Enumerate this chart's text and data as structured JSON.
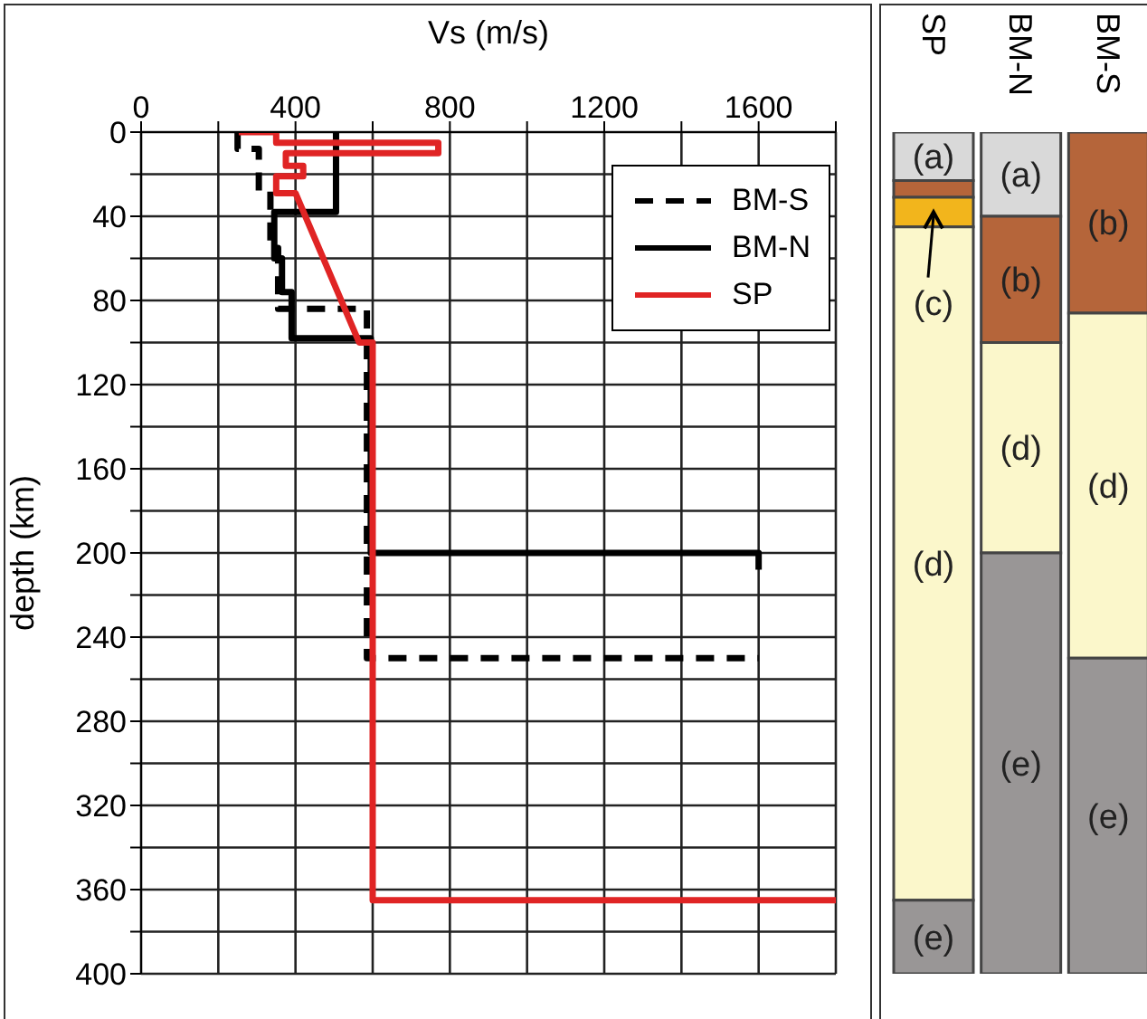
{
  "chart_data": [
    {
      "type": "line",
      "xlabel": "Vs (m/s)",
      "ylabel": "depth (km)",
      "xlim": [
        0,
        1800
      ],
      "xticks": [
        0,
        {
          "value": 200,
          "label": null
        },
        400,
        {
          "value": 600,
          "label": null
        },
        800,
        {
          "value": 1000,
          "label": null
        },
        1200,
        {
          "value": 1400,
          "label": null
        },
        1600,
        {
          "value": 1800,
          "label": null
        }
      ],
      "ylim": [
        400,
        0
      ],
      "yticks": [
        0,
        {
          "value": 20,
          "label": null
        },
        40,
        {
          "value": 60,
          "label": null
        },
        80,
        {
          "value": 100,
          "label": null
        },
        120,
        {
          "value": 140,
          "label": null
        },
        160,
        {
          "value": 180,
          "label": null
        },
        200,
        {
          "value": 220,
          "label": null
        },
        240,
        {
          "value": 260,
          "label": null
        },
        280,
        {
          "value": 300,
          "label": null
        },
        320,
        {
          "value": 340,
          "label": null
        },
        360,
        {
          "value": 380,
          "label": null
        },
        400
      ],
      "grid": true,
      "legend": "top right",
      "marker": "none",
      "series": [
        {
          "name": "BM-S",
          "color": "#000000",
          "line_style": "dashed",
          "x": [
            250,
            250,
            305,
            305,
            335,
            335,
            355,
            355,
            585,
            585,
            1600
          ],
          "values": [
            0,
            8,
            8,
            28,
            28,
            55,
            55,
            84,
            84,
            250,
            250
          ]
        },
        {
          "name": "BM-N",
          "color": "#000000",
          "line_style": "solid",
          "x": [
            505,
            505,
            345,
            345,
            365,
            365,
            390,
            390,
            595,
            595,
            1600,
            1600
          ],
          "values": [
            0,
            38,
            38,
            60,
            60,
            76,
            76,
            98,
            98,
            200,
            200,
            208
          ]
        },
        {
          "name": "SP",
          "color": "#e02424",
          "line_style": "solid",
          "x": [
            253,
            350,
            350,
            770,
            770,
            375,
            375,
            420,
            420,
            350,
            350,
            400,
            565,
            600,
            600,
            1800
          ],
          "values": [
            0,
            0,
            5,
            5,
            10,
            10,
            16,
            16,
            21,
            21,
            29,
            29,
            100,
            100,
            365,
            365
          ]
        }
      ]
    },
    {
      "type": "bar",
      "stacked": true,
      "categories": [
        "SP",
        "BM-N",
        "BM-S"
      ],
      "ylim": [
        400,
        0
      ],
      "tick_labels": "x",
      "series": [
        {
          "color": "#d9d9d9",
          "values": [
            23,
            40,
            null
          ],
          "value_labels": [
            "(a)",
            "(a)",
            null
          ]
        },
        {
          "color": "#b5653a",
          "values": [
            8,
            60,
            86
          ],
          "value_labels": [
            null,
            "(b)",
            "(b)"
          ]
        },
        {
          "color": "#f2b51c",
          "values": [
            14,
            null,
            null
          ],
          "value_labels": [
            "(c)",
            null,
            null
          ]
        },
        {
          "color": "#fbf7cb",
          "values": [
            320,
            100,
            164
          ],
          "value_labels": [
            "(d)",
            "(d)",
            "(d)"
          ]
        },
        {
          "color": "#999696",
          "values": [
            35,
            200,
            150
          ],
          "value_labels": [
            "(e)",
            "(e)",
            "(e)"
          ]
        }
      ]
    }
  ]
}
